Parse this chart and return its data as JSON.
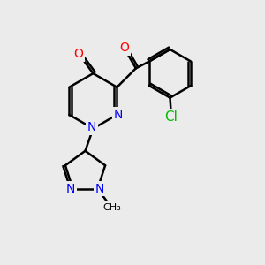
{
  "background_color": "#ebebeb",
  "bond_color": "#000000",
  "bond_width": 1.8,
  "atom_colors": {
    "N": "#0000ff",
    "O": "#ff0000",
    "Cl": "#00bb00",
    "C": "#000000"
  },
  "font_size": 10,
  "fig_size": [
    3.0,
    3.0
  ],
  "dpi": 100
}
